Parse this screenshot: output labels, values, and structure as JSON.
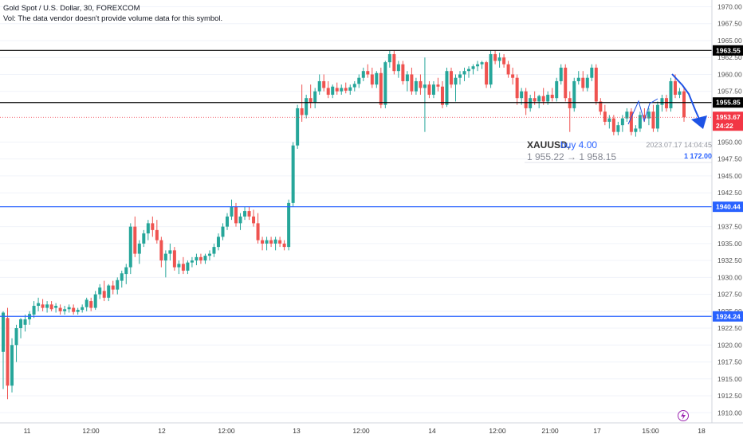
{
  "header": {
    "title": "Gold Spot / U.S. Dollar, 30, FOREXCOM",
    "volume_note": "Vol: The data vendor doesn't provide volume data for this symbol."
  },
  "colors": {
    "up": "#26a69a",
    "down": "#ef5350",
    "level_black": "#000000",
    "level_blue": "#2962ff",
    "current_price_bg": "#f23645",
    "arrow": "#1e53e5"
  },
  "trade_label": {
    "symbol": "XAUUSD,",
    "action": "buy 4.00",
    "prices": "1 955.22 → 1 958.15",
    "date": "2023.07.17 14:04:45",
    "quantity": "1 172.00"
  },
  "chart_data": {
    "type": "candlestick",
    "symbol": "Gold Spot / U.S. Dollar",
    "timeframe": "30",
    "ylim": [
      1908.5,
      1971
    ],
    "price_ticks": [
      "1910.00",
      "1912.50",
      "1915.00",
      "1917.50",
      "1920.00",
      "1922.50",
      "1925.00",
      "1927.50",
      "1930.00",
      "1932.50",
      "1935.00",
      "1937.50",
      "1942.50",
      "1945.00",
      "1947.50",
      "1950.00",
      "1957.50",
      "1960.00",
      "1962.50",
      "1965.00",
      "1967.50",
      "1970.00"
    ],
    "time_ticks": [
      "11",
      "12:00",
      "12",
      "12:00",
      "13",
      "12:00",
      "14",
      "12:00",
      "21:00",
      "17",
      "15:00",
      "18"
    ],
    "horizontal_levels": [
      {
        "price": 1963.55,
        "label": "1963.55",
        "color": "#000000"
      },
      {
        "price": 1955.85,
        "label": "1955.85",
        "color": "#000000"
      },
      {
        "price": 1940.44,
        "label": "1940.44",
        "color": "#2962ff"
      },
      {
        "price": 1924.24,
        "label": "1924.24",
        "color": "#2962ff"
      }
    ],
    "current_price": {
      "price": 1953.67,
      "label": "1953.67",
      "countdown": "24:22"
    },
    "series": [
      {
        "name": "XAUUSD",
        "fields": [
          "open",
          "high",
          "low",
          "close"
        ],
        "candles": [
          [
            1919.0,
            1925.0,
            1913.5,
            1924.8
          ],
          [
            1924.0,
            1925.5,
            1912.0,
            1914.0
          ],
          [
            1914.0,
            1921.0,
            1913.0,
            1920.0
          ],
          [
            1920.0,
            1923.0,
            1917.5,
            1922.5
          ],
          [
            1922.5,
            1924.0,
            1921.0,
            1923.8
          ],
          [
            1923.0,
            1924.5,
            1922.0,
            1923.8
          ],
          [
            1923.8,
            1925.0,
            1923.0,
            1924.6
          ],
          [
            1924.5,
            1926.5,
            1924.0,
            1925.8
          ],
          [
            1925.8,
            1927.0,
            1925.0,
            1926.2
          ],
          [
            1926.0,
            1926.8,
            1925.0,
            1925.5
          ],
          [
            1925.5,
            1926.5,
            1924.8,
            1926.0
          ],
          [
            1926.0,
            1926.5,
            1925.0,
            1925.3
          ],
          [
            1925.5,
            1926.2,
            1924.8,
            1925.8
          ],
          [
            1925.5,
            1926.0,
            1924.5,
            1925.0
          ],
          [
            1925.0,
            1925.8,
            1924.5,
            1925.3
          ],
          [
            1925.3,
            1926.0,
            1924.8,
            1925.6
          ],
          [
            1925.5,
            1926.0,
            1924.5,
            1924.9
          ],
          [
            1924.9,
            1925.5,
            1924.5,
            1925.2
          ],
          [
            1925.2,
            1926.0,
            1924.8,
            1925.6
          ],
          [
            1925.6,
            1927.0,
            1925.0,
            1926.7
          ],
          [
            1926.5,
            1927.0,
            1925.0,
            1925.5
          ],
          [
            1925.5,
            1928.0,
            1925.2,
            1927.5
          ],
          [
            1927.5,
            1929.0,
            1926.8,
            1928.5
          ],
          [
            1928.0,
            1929.5,
            1926.5,
            1927.0
          ],
          [
            1927.0,
            1929.0,
            1926.5,
            1928.8
          ],
          [
            1928.8,
            1929.5,
            1927.5,
            1928.2
          ],
          [
            1928.2,
            1930.0,
            1927.5,
            1929.6
          ],
          [
            1929.5,
            1931.0,
            1928.5,
            1930.6
          ],
          [
            1930.5,
            1932.0,
            1929.0,
            1931.5
          ],
          [
            1931.5,
            1938.0,
            1930.5,
            1937.5
          ],
          [
            1937.5,
            1939.0,
            1933.0,
            1933.5
          ],
          [
            1933.5,
            1935.5,
            1932.0,
            1935.0
          ],
          [
            1935.0,
            1937.0,
            1934.5,
            1936.5
          ],
          [
            1936.5,
            1938.5,
            1935.5,
            1938.0
          ],
          [
            1938.0,
            1939.0,
            1936.0,
            1937.0
          ],
          [
            1937.0,
            1938.5,
            1935.0,
            1935.5
          ],
          [
            1935.5,
            1936.0,
            1931.5,
            1932.5
          ],
          [
            1932.5,
            1934.0,
            1930.0,
            1933.5
          ],
          [
            1933.5,
            1935.0,
            1932.5,
            1934.0
          ],
          [
            1934.0,
            1934.5,
            1931.0,
            1931.5
          ],
          [
            1931.5,
            1932.5,
            1930.5,
            1932.0
          ],
          [
            1932.0,
            1933.0,
            1930.5,
            1931.0
          ],
          [
            1931.0,
            1932.5,
            1930.5,
            1932.2
          ],
          [
            1932.2,
            1933.0,
            1931.5,
            1932.5
          ],
          [
            1932.5,
            1933.5,
            1931.8,
            1933.0
          ],
          [
            1933.0,
            1933.5,
            1932.0,
            1932.5
          ],
          [
            1932.5,
            1933.5,
            1932.0,
            1933.2
          ],
          [
            1933.2,
            1934.0,
            1932.5,
            1933.5
          ],
          [
            1933.5,
            1935.0,
            1933.0,
            1934.5
          ],
          [
            1934.5,
            1936.5,
            1934.0,
            1936.0
          ],
          [
            1936.0,
            1938.0,
            1935.5,
            1937.5
          ],
          [
            1937.5,
            1939.5,
            1937.0,
            1939.0
          ],
          [
            1939.0,
            1941.5,
            1938.5,
            1940.5
          ],
          [
            1940.5,
            1941.0,
            1937.5,
            1938.0
          ],
          [
            1938.0,
            1939.5,
            1937.0,
            1939.0
          ],
          [
            1939.0,
            1940.5,
            1938.5,
            1939.8
          ],
          [
            1939.8,
            1940.5,
            1938.5,
            1939.0
          ],
          [
            1939.0,
            1940.0,
            1937.5,
            1938.0
          ],
          [
            1938.0,
            1939.5,
            1935.0,
            1935.5
          ],
          [
            1935.5,
            1936.0,
            1934.0,
            1935.0
          ],
          [
            1935.0,
            1936.0,
            1934.0,
            1935.5
          ],
          [
            1935.5,
            1936.0,
            1934.5,
            1935.0
          ],
          [
            1935.0,
            1936.0,
            1934.0,
            1935.6
          ],
          [
            1935.5,
            1936.0,
            1934.5,
            1935.0
          ],
          [
            1935.0,
            1935.5,
            1934.0,
            1934.5
          ],
          [
            1934.5,
            1941.5,
            1934.0,
            1941.0
          ],
          [
            1941.0,
            1950.0,
            1940.5,
            1949.5
          ],
          [
            1949.5,
            1955.5,
            1949.0,
            1955.0
          ],
          [
            1955.0,
            1958.5,
            1953.0,
            1954.0
          ],
          [
            1954.0,
            1957.0,
            1953.5,
            1956.5
          ],
          [
            1956.5,
            1958.5,
            1955.0,
            1955.8
          ],
          [
            1955.8,
            1958.0,
            1955.0,
            1957.5
          ],
          [
            1957.5,
            1960.0,
            1957.0,
            1959.0
          ],
          [
            1959.0,
            1960.0,
            1957.5,
            1958.0
          ],
          [
            1958.0,
            1959.0,
            1956.5,
            1957.0
          ],
          [
            1957.0,
            1958.5,
            1956.5,
            1958.2
          ],
          [
            1958.0,
            1958.8,
            1957.0,
            1957.5
          ],
          [
            1957.5,
            1958.5,
            1957.0,
            1958.0
          ],
          [
            1958.0,
            1958.8,
            1957.2,
            1957.6
          ],
          [
            1957.6,
            1958.5,
            1957.0,
            1958.1
          ],
          [
            1958.1,
            1959.0,
            1957.5,
            1958.6
          ],
          [
            1958.6,
            1960.0,
            1958.0,
            1959.5
          ],
          [
            1959.5,
            1961.0,
            1959.0,
            1960.5
          ],
          [
            1960.5,
            1961.5,
            1959.5,
            1960.0
          ],
          [
            1960.0,
            1961.0,
            1958.0,
            1958.5
          ],
          [
            1958.5,
            1960.5,
            1958.0,
            1960.2
          ],
          [
            1960.2,
            1961.0,
            1955.0,
            1955.5
          ],
          [
            1955.5,
            1962.0,
            1955.0,
            1961.8
          ],
          [
            1961.8,
            1963.5,
            1961.0,
            1963.0
          ],
          [
            1963.0,
            1963.5,
            1960.0,
            1960.5
          ],
          [
            1960.5,
            1962.0,
            1959.5,
            1961.5
          ],
          [
            1961.5,
            1962.0,
            1958.5,
            1959.0
          ],
          [
            1959.0,
            1960.5,
            1957.5,
            1960.0
          ],
          [
            1960.0,
            1961.0,
            1957.0,
            1957.5
          ],
          [
            1957.5,
            1959.5,
            1957.0,
            1959.0
          ],
          [
            1959.0,
            1960.0,
            1957.0,
            1958.0
          ],
          [
            1958.0,
            1962.5,
            1951.5,
            1958.5
          ],
          [
            1958.5,
            1959.0,
            1956.5,
            1957.0
          ],
          [
            1957.0,
            1959.0,
            1956.5,
            1958.5
          ],
          [
            1958.5,
            1959.5,
            1957.5,
            1958.2
          ],
          [
            1958.2,
            1959.0,
            1955.0,
            1955.5
          ],
          [
            1955.5,
            1961.0,
            1955.2,
            1960.5
          ],
          [
            1960.5,
            1961.0,
            1958.0,
            1958.5
          ],
          [
            1958.5,
            1960.0,
            1956.0,
            1959.5
          ],
          [
            1959.5,
            1960.5,
            1958.5,
            1960.0
          ],
          [
            1960.0,
            1961.0,
            1959.0,
            1960.5
          ],
          [
            1960.5,
            1961.2,
            1959.5,
            1960.8
          ],
          [
            1960.8,
            1961.5,
            1960.0,
            1961.2
          ],
          [
            1961.2,
            1962.0,
            1960.5,
            1961.5
          ],
          [
            1961.5,
            1962.0,
            1960.8,
            1961.8
          ],
          [
            1961.8,
            1962.0,
            1958.0,
            1958.5
          ],
          [
            1958.5,
            1963.5,
            1958.0,
            1963.0
          ],
          [
            1963.0,
            1963.5,
            1961.5,
            1962.0
          ],
          [
            1962.0,
            1963.2,
            1961.0,
            1962.5
          ],
          [
            1962.5,
            1963.0,
            1961.0,
            1961.5
          ],
          [
            1961.5,
            1962.0,
            1959.5,
            1960.0
          ],
          [
            1960.0,
            1961.0,
            1958.5,
            1959.5
          ],
          [
            1959.5,
            1960.0,
            1955.5,
            1956.5
          ],
          [
            1956.5,
            1958.0,
            1955.5,
            1957.5
          ],
          [
            1957.5,
            1958.0,
            1954.0,
            1955.0
          ],
          [
            1955.0,
            1957.0,
            1954.5,
            1956.5
          ],
          [
            1956.5,
            1957.5,
            1955.5,
            1956.0
          ],
          [
            1956.0,
            1957.0,
            1955.0,
            1956.8
          ],
          [
            1956.8,
            1958.0,
            1955.5,
            1956.0
          ],
          [
            1956.0,
            1957.5,
            1955.5,
            1957.0
          ],
          [
            1957.0,
            1958.0,
            1956.0,
            1956.5
          ],
          [
            1956.5,
            1959.5,
            1956.0,
            1959.0
          ],
          [
            1959.0,
            1961.5,
            1958.5,
            1961.0
          ],
          [
            1961.0,
            1961.5,
            1956.0,
            1956.5
          ],
          [
            1956.5,
            1957.5,
            1951.5,
            1955.0
          ],
          [
            1955.0,
            1959.5,
            1954.5,
            1959.0
          ],
          [
            1959.0,
            1960.5,
            1958.5,
            1959.5
          ],
          [
            1959.5,
            1960.5,
            1957.5,
            1958.0
          ],
          [
            1958.0,
            1960.0,
            1957.5,
            1959.5
          ],
          [
            1959.5,
            1961.5,
            1959.0,
            1961.0
          ],
          [
            1961.0,
            1961.5,
            1955.5,
            1956.0
          ],
          [
            1956.0,
            1956.5,
            1954.0,
            1954.5
          ],
          [
            1954.5,
            1955.5,
            1952.5,
            1953.0
          ],
          [
            1953.0,
            1954.0,
            1952.0,
            1953.5
          ],
          [
            1953.5,
            1954.0,
            1951.0,
            1951.5
          ],
          [
            1951.5,
            1953.0,
            1951.0,
            1952.5
          ],
          [
            1952.5,
            1954.0,
            1951.5,
            1953.5
          ],
          [
            1953.5,
            1955.0,
            1953.0,
            1954.5
          ],
          [
            1954.5,
            1955.0,
            1951.0,
            1951.5
          ],
          [
            1951.5,
            1952.5,
            1950.8,
            1952.0
          ],
          [
            1952.0,
            1954.5,
            1951.5,
            1954.0
          ],
          [
            1954.0,
            1955.0,
            1953.0,
            1953.5
          ],
          [
            1953.5,
            1955.0,
            1952.5,
            1954.5
          ],
          [
            1954.5,
            1955.5,
            1951.5,
            1952.0
          ],
          [
            1952.0,
            1956.0,
            1951.5,
            1955.5
          ],
          [
            1955.5,
            1957.0,
            1954.5,
            1956.5
          ],
          [
            1956.5,
            1957.0,
            1954.5,
            1955.0
          ],
          [
            1955.0,
            1959.5,
            1954.5,
            1959.0
          ],
          [
            1959.0,
            1960.0,
            1956.5,
            1957.0
          ],
          [
            1957.0,
            1958.0,
            1956.5,
            1957.5
          ],
          [
            1957.5,
            1958.0,
            1953.0,
            1953.67
          ]
        ]
      }
    ]
  }
}
